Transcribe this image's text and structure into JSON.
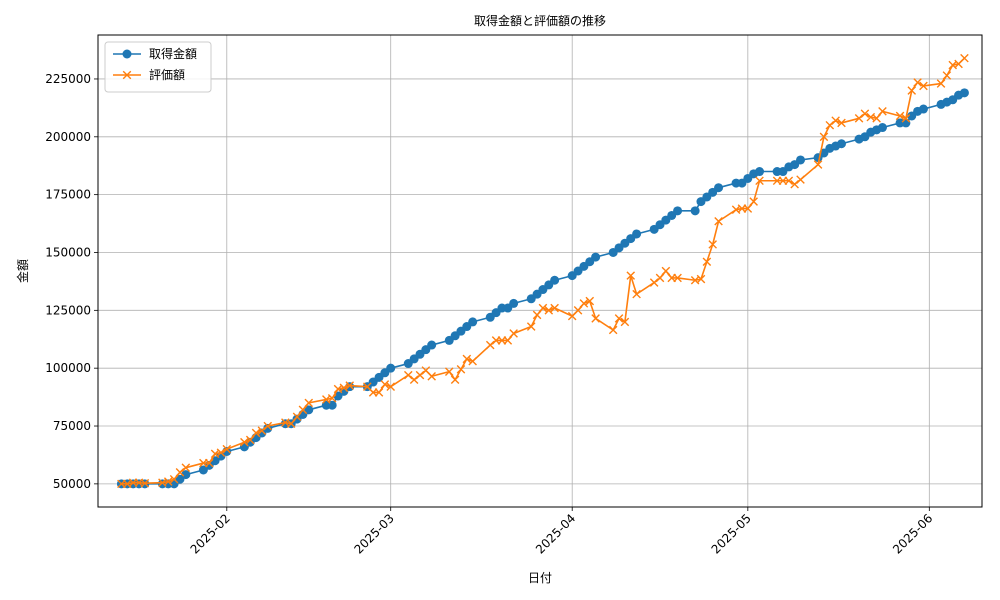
{
  "chart_data": {
    "type": "line",
    "title": "取得金額と評価額の推移",
    "xlabel": "日付",
    "ylabel": "金額",
    "x_axis": "date",
    "xlim": [
      "2025-01-10",
      "2025-06-10"
    ],
    "ylim": [
      40000,
      244000
    ],
    "x_ticks": [
      {
        "date": "2025-02-01",
        "label": "2025-02"
      },
      {
        "date": "2025-03-01",
        "label": "2025-03"
      },
      {
        "date": "2025-04-01",
        "label": "2025-04"
      },
      {
        "date": "2025-05-01",
        "label": "2025-05"
      },
      {
        "date": "2025-06-01",
        "label": "2025-06"
      }
    ],
    "y_ticks": [
      50000,
      75000,
      100000,
      125000,
      150000,
      175000,
      200000,
      225000
    ],
    "grid": true,
    "legend_position": "top-left",
    "series": [
      {
        "name": "取得金額",
        "color": "#1f77b4",
        "marker": "circle",
        "points": [
          [
            "2025-01-14",
            50000
          ],
          [
            "2025-01-15",
            50000
          ],
          [
            "2025-01-16",
            50000
          ],
          [
            "2025-01-17",
            50000
          ],
          [
            "2025-01-18",
            50000
          ],
          [
            "2025-01-21",
            50000
          ],
          [
            "2025-01-22",
            50000
          ],
          [
            "2025-01-23",
            50000
          ],
          [
            "2025-01-24",
            52000
          ],
          [
            "2025-01-25",
            54000
          ],
          [
            "2025-01-28",
            56000
          ],
          [
            "2025-01-29",
            58000
          ],
          [
            "2025-01-30",
            60000
          ],
          [
            "2025-01-31",
            62000
          ],
          [
            "2025-02-01",
            64000
          ],
          [
            "2025-02-04",
            66000
          ],
          [
            "2025-02-05",
            68000
          ],
          [
            "2025-02-06",
            70000
          ],
          [
            "2025-02-07",
            72000
          ],
          [
            "2025-02-08",
            74000
          ],
          [
            "2025-02-11",
            76000
          ],
          [
            "2025-02-12",
            76000
          ],
          [
            "2025-02-13",
            78000
          ],
          [
            "2025-02-14",
            80000
          ],
          [
            "2025-02-15",
            82000
          ],
          [
            "2025-02-18",
            84000
          ],
          [
            "2025-02-19",
            84000
          ],
          [
            "2025-02-20",
            88000
          ],
          [
            "2025-02-21",
            90000
          ],
          [
            "2025-02-22",
            92000
          ],
          [
            "2025-02-25",
            92000
          ],
          [
            "2025-02-26",
            94000
          ],
          [
            "2025-02-27",
            96000
          ],
          [
            "2025-02-28",
            98000
          ],
          [
            "2025-03-01",
            100000
          ],
          [
            "2025-03-04",
            102000
          ],
          [
            "2025-03-05",
            104000
          ],
          [
            "2025-03-06",
            106000
          ],
          [
            "2025-03-07",
            108000
          ],
          [
            "2025-03-08",
            110000
          ],
          [
            "2025-03-11",
            112000
          ],
          [
            "2025-03-12",
            114000
          ],
          [
            "2025-03-13",
            116000
          ],
          [
            "2025-03-14",
            118000
          ],
          [
            "2025-03-15",
            120000
          ],
          [
            "2025-03-18",
            122000
          ],
          [
            "2025-03-19",
            124000
          ],
          [
            "2025-03-20",
            126000
          ],
          [
            "2025-03-21",
            126000
          ],
          [
            "2025-03-22",
            128000
          ],
          [
            "2025-03-25",
            130000
          ],
          [
            "2025-03-26",
            132000
          ],
          [
            "2025-03-27",
            134000
          ],
          [
            "2025-03-28",
            136000
          ],
          [
            "2025-03-29",
            138000
          ],
          [
            "2025-04-01",
            140000
          ],
          [
            "2025-04-02",
            142000
          ],
          [
            "2025-04-03",
            144000
          ],
          [
            "2025-04-04",
            146000
          ],
          [
            "2025-04-05",
            148000
          ],
          [
            "2025-04-08",
            150000
          ],
          [
            "2025-04-09",
            152000
          ],
          [
            "2025-04-10",
            154000
          ],
          [
            "2025-04-11",
            156000
          ],
          [
            "2025-04-12",
            158000
          ],
          [
            "2025-04-15",
            160000
          ],
          [
            "2025-04-16",
            162000
          ],
          [
            "2025-04-17",
            164000
          ],
          [
            "2025-04-18",
            166000
          ],
          [
            "2025-04-19",
            168000
          ],
          [
            "2025-04-22",
            168000
          ],
          [
            "2025-04-23",
            172000
          ],
          [
            "2025-04-24",
            174000
          ],
          [
            "2025-04-25",
            176000
          ],
          [
            "2025-04-26",
            178000
          ],
          [
            "2025-04-29",
            180000
          ],
          [
            "2025-04-30",
            180000
          ],
          [
            "2025-05-01",
            182000
          ],
          [
            "2025-05-02",
            184000
          ],
          [
            "2025-05-03",
            185000
          ],
          [
            "2025-05-06",
            185000
          ],
          [
            "2025-05-07",
            185000
          ],
          [
            "2025-05-08",
            187000
          ],
          [
            "2025-05-09",
            188000
          ],
          [
            "2025-05-10",
            190000
          ],
          [
            "2025-05-13",
            191000
          ],
          [
            "2025-05-14",
            193000
          ],
          [
            "2025-05-15",
            195000
          ],
          [
            "2025-05-16",
            196000
          ],
          [
            "2025-05-17",
            197000
          ],
          [
            "2025-05-20",
            199000
          ],
          [
            "2025-05-21",
            200000
          ],
          [
            "2025-05-22",
            202000
          ],
          [
            "2025-05-23",
            203000
          ],
          [
            "2025-05-24",
            204000
          ],
          [
            "2025-05-27",
            206000
          ],
          [
            "2025-05-28",
            206000
          ],
          [
            "2025-05-29",
            209000
          ],
          [
            "2025-05-30",
            211000
          ],
          [
            "2025-05-31",
            212000
          ],
          [
            "2025-06-03",
            214000
          ],
          [
            "2025-06-04",
            215000
          ],
          [
            "2025-06-05",
            216000
          ],
          [
            "2025-06-06",
            218000
          ],
          [
            "2025-06-07",
            219000
          ]
        ]
      },
      {
        "name": "評価額",
        "color": "#ff7f0e",
        "marker": "x",
        "points": [
          [
            "2025-01-14",
            50000
          ],
          [
            "2025-01-15",
            50000
          ],
          [
            "2025-01-16",
            50500
          ],
          [
            "2025-01-17",
            50500
          ],
          [
            "2025-01-18",
            50300
          ],
          [
            "2025-01-21",
            50500
          ],
          [
            "2025-01-22",
            51000
          ],
          [
            "2025-01-23",
            52000
          ],
          [
            "2025-01-24",
            55000
          ],
          [
            "2025-01-25",
            57000
          ],
          [
            "2025-01-28",
            59000
          ],
          [
            "2025-01-29",
            59000
          ],
          [
            "2025-01-30",
            63000
          ],
          [
            "2025-01-31",
            63500
          ],
          [
            "2025-02-01",
            65000
          ],
          [
            "2025-02-04",
            68000
          ],
          [
            "2025-02-05",
            69000
          ],
          [
            "2025-02-06",
            72000
          ],
          [
            "2025-02-07",
            73000
          ],
          [
            "2025-02-08",
            75000
          ],
          [
            "2025-02-11",
            76500
          ],
          [
            "2025-02-12",
            76000
          ],
          [
            "2025-02-13",
            79000
          ],
          [
            "2025-02-14",
            82000
          ],
          [
            "2025-02-15",
            85000
          ],
          [
            "2025-02-18",
            86500
          ],
          [
            "2025-02-19",
            87000
          ],
          [
            "2025-02-20",
            91000
          ],
          [
            "2025-02-21",
            91500
          ],
          [
            "2025-02-22",
            92500
          ],
          [
            "2025-02-25",
            92000
          ],
          [
            "2025-02-26",
            89500
          ],
          [
            "2025-02-27",
            89500
          ],
          [
            "2025-02-28",
            93000
          ],
          [
            "2025-03-01",
            92000
          ],
          [
            "2025-03-04",
            97000
          ],
          [
            "2025-03-05",
            95000
          ],
          [
            "2025-03-06",
            97000
          ],
          [
            "2025-03-07",
            99000
          ],
          [
            "2025-03-08",
            96500
          ],
          [
            "2025-03-11",
            98500
          ],
          [
            "2025-03-12",
            95000
          ],
          [
            "2025-03-13",
            99500
          ],
          [
            "2025-03-14",
            104000
          ],
          [
            "2025-03-15",
            103000
          ],
          [
            "2025-03-18",
            110000
          ],
          [
            "2025-03-19",
            112000
          ],
          [
            "2025-03-20",
            112000
          ],
          [
            "2025-03-21",
            112000
          ],
          [
            "2025-03-22",
            115000
          ],
          [
            "2025-03-25",
            118000
          ],
          [
            "2025-03-26",
            123000
          ],
          [
            "2025-03-27",
            126000
          ],
          [
            "2025-03-28",
            125000
          ],
          [
            "2025-03-29",
            126000
          ],
          [
            "2025-04-01",
            122500
          ],
          [
            "2025-04-02",
            125000
          ],
          [
            "2025-04-03",
            128000
          ],
          [
            "2025-04-04",
            129000
          ],
          [
            "2025-04-05",
            121500
          ],
          [
            "2025-04-08",
            116500
          ],
          [
            "2025-04-09",
            121500
          ],
          [
            "2025-04-10",
            120000
          ],
          [
            "2025-04-11",
            140000
          ],
          [
            "2025-04-12",
            132000
          ],
          [
            "2025-04-15",
            137000
          ],
          [
            "2025-04-16",
            139000
          ],
          [
            "2025-04-17",
            142000
          ],
          [
            "2025-04-18",
            139000
          ],
          [
            "2025-04-19",
            139000
          ],
          [
            "2025-04-22",
            138000
          ],
          [
            "2025-04-23",
            138500
          ],
          [
            "2025-04-24",
            146000
          ],
          [
            "2025-04-25",
            153500
          ],
          [
            "2025-04-26",
            163500
          ],
          [
            "2025-04-29",
            168500
          ],
          [
            "2025-04-30",
            169000
          ],
          [
            "2025-05-01",
            169000
          ],
          [
            "2025-05-02",
            172000
          ],
          [
            "2025-05-03",
            181000
          ],
          [
            "2025-05-06",
            181000
          ],
          [
            "2025-05-07",
            181000
          ],
          [
            "2025-05-08",
            181000
          ],
          [
            "2025-05-09",
            179500
          ],
          [
            "2025-05-10",
            181500
          ],
          [
            "2025-05-13",
            188000
          ],
          [
            "2025-05-14",
            200000
          ],
          [
            "2025-05-15",
            205000
          ],
          [
            "2025-05-16",
            207000
          ],
          [
            "2025-05-17",
            206000
          ],
          [
            "2025-05-20",
            208000
          ],
          [
            "2025-05-21",
            210000
          ],
          [
            "2025-05-22",
            208500
          ],
          [
            "2025-05-23",
            208000
          ],
          [
            "2025-05-24",
            211000
          ],
          [
            "2025-05-27",
            209000
          ],
          [
            "2025-05-28",
            208000
          ],
          [
            "2025-05-29",
            220000
          ],
          [
            "2025-05-30",
            223500
          ],
          [
            "2025-05-31",
            222000
          ],
          [
            "2025-06-03",
            223000
          ],
          [
            "2025-06-04",
            226500
          ],
          [
            "2025-06-05",
            231000
          ],
          [
            "2025-06-06",
            231500
          ],
          [
            "2025-06-07",
            234000
          ]
        ]
      }
    ]
  }
}
